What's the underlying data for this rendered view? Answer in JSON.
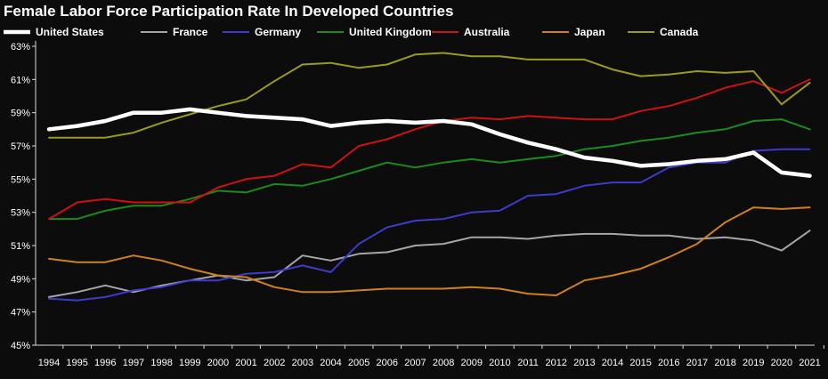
{
  "chart_data": {
    "type": "line",
    "title": "Female Labor Force Participation Rate In Developed Countries",
    "xlabel": "",
    "ylabel": "",
    "ylim": [
      45,
      63
    ],
    "y_ticks": [
      "45%",
      "47%",
      "49%",
      "51%",
      "53%",
      "55%",
      "57%",
      "59%",
      "61%",
      "63%"
    ],
    "y_tick_values": [
      45,
      47,
      49,
      51,
      53,
      55,
      57,
      59,
      61,
      63
    ],
    "x": [
      "1994",
      "1995",
      "1996",
      "1997",
      "1998",
      "1999",
      "2000",
      "2001",
      "2002",
      "2003",
      "2004",
      "2005",
      "2006",
      "2007",
      "2008",
      "2009",
      "2010",
      "2011",
      "2012",
      "2013",
      "2014",
      "2015",
      "2016",
      "2017",
      "2018",
      "2019",
      "2020",
      "2021"
    ],
    "grid": false,
    "legend_position": "top",
    "series": [
      {
        "name": "United States",
        "color": "#ffffff",
        "thick": true,
        "values": [
          58.0,
          58.2,
          58.5,
          59.0,
          59.0,
          59.2,
          59.0,
          58.8,
          58.7,
          58.6,
          58.2,
          58.4,
          58.5,
          58.4,
          58.5,
          58.3,
          57.7,
          57.2,
          56.8,
          56.3,
          56.1,
          55.8,
          55.9,
          56.1,
          56.2,
          56.6,
          55.4,
          55.2
        ]
      },
      {
        "name": "France",
        "color": "#a6a6a6",
        "values": [
          47.9,
          48.2,
          48.6,
          48.2,
          48.6,
          48.9,
          49.2,
          48.9,
          49.1,
          50.4,
          50.1,
          50.5,
          50.6,
          51.0,
          51.1,
          51.5,
          51.5,
          51.4,
          51.6,
          51.7,
          51.7,
          51.6,
          51.6,
          51.4,
          51.5,
          51.3,
          50.7,
          51.9
        ]
      },
      {
        "name": "Germany",
        "color": "#3b3bcc",
        "values": [
          47.8,
          47.7,
          47.9,
          48.3,
          48.5,
          48.9,
          48.9,
          49.3,
          49.4,
          49.8,
          49.4,
          51.1,
          52.1,
          52.5,
          52.6,
          53.0,
          53.1,
          54.0,
          54.1,
          54.6,
          54.8,
          54.8,
          55.7,
          56.0,
          56.0,
          56.7,
          56.8,
          56.8
        ]
      },
      {
        "name": "United Kingdom",
        "color": "#1a8c1a",
        "values": [
          52.6,
          52.6,
          53.1,
          53.4,
          53.4,
          53.8,
          54.3,
          54.2,
          54.7,
          54.6,
          55.0,
          55.5,
          56.0,
          55.7,
          56.0,
          56.2,
          56.0,
          56.2,
          56.4,
          56.8,
          57.0,
          57.3,
          57.5,
          57.8,
          58.0,
          58.5,
          58.6,
          58.0
        ]
      },
      {
        "name": "Australia",
        "color": "#cc1212",
        "values": [
          52.6,
          53.6,
          53.8,
          53.6,
          53.6,
          53.6,
          54.5,
          55.0,
          55.2,
          55.9,
          55.7,
          57.0,
          57.4,
          58.0,
          58.5,
          58.7,
          58.6,
          58.8,
          58.7,
          58.6,
          58.6,
          59.1,
          59.4,
          59.9,
          60.5,
          60.9,
          60.2,
          61.0
        ]
      },
      {
        "name": "Japan",
        "color": "#d0811c",
        "values": [
          50.2,
          50.0,
          50.0,
          50.4,
          50.1,
          49.6,
          49.2,
          49.1,
          48.5,
          48.2,
          48.2,
          48.3,
          48.4,
          48.4,
          48.4,
          48.5,
          48.4,
          48.1,
          48.0,
          48.9,
          49.2,
          49.6,
          50.3,
          51.1,
          52.4,
          53.3,
          53.2,
          53.3
        ]
      },
      {
        "name": "Canada",
        "color": "#9a9a1e",
        "values": [
          57.5,
          57.5,
          57.5,
          57.8,
          58.4,
          58.9,
          59.4,
          59.8,
          60.9,
          61.9,
          62.0,
          61.7,
          61.9,
          62.5,
          62.6,
          62.4,
          62.4,
          62.2,
          62.2,
          62.2,
          61.6,
          61.2,
          61.3,
          61.5,
          61.4,
          61.5,
          59.5,
          60.8
        ]
      }
    ]
  }
}
